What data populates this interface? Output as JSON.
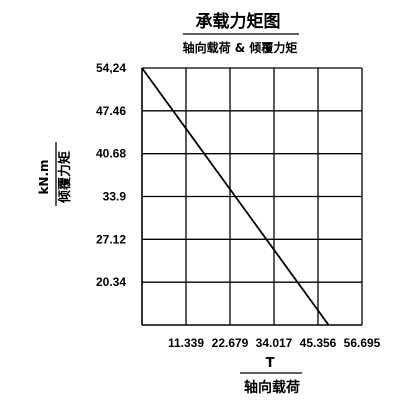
{
  "chart_data": {
    "type": "line",
    "title": "承载力矩图",
    "subtitle": "轴向载荷 & 倾覆力矩",
    "xlabel_unit": "T",
    "xlabel": "轴向载荷",
    "ylabel_unit": "kN.m",
    "ylabel": "倾覆力矩",
    "x_tick_labels": [
      "11.339",
      "22.679",
      "34.017",
      "45.356",
      "56.695"
    ],
    "y_tick_labels": [
      "54,24",
      "47.46",
      "40.68",
      "33.9",
      "27.12",
      "20.34"
    ],
    "x_ticks": [
      11.339,
      22.679,
      34.017,
      45.356,
      56.695
    ],
    "y_ticks": [
      54.24,
      47.46,
      40.68,
      33.9,
      27.12,
      20.34
    ],
    "xlim": [
      0,
      56.695
    ],
    "ylim": [
      13.56,
      54.24
    ],
    "grid": true,
    "series": [
      {
        "x": [
          0,
          48.1
        ],
        "y": [
          54.24,
          13.56
        ]
      }
    ]
  }
}
